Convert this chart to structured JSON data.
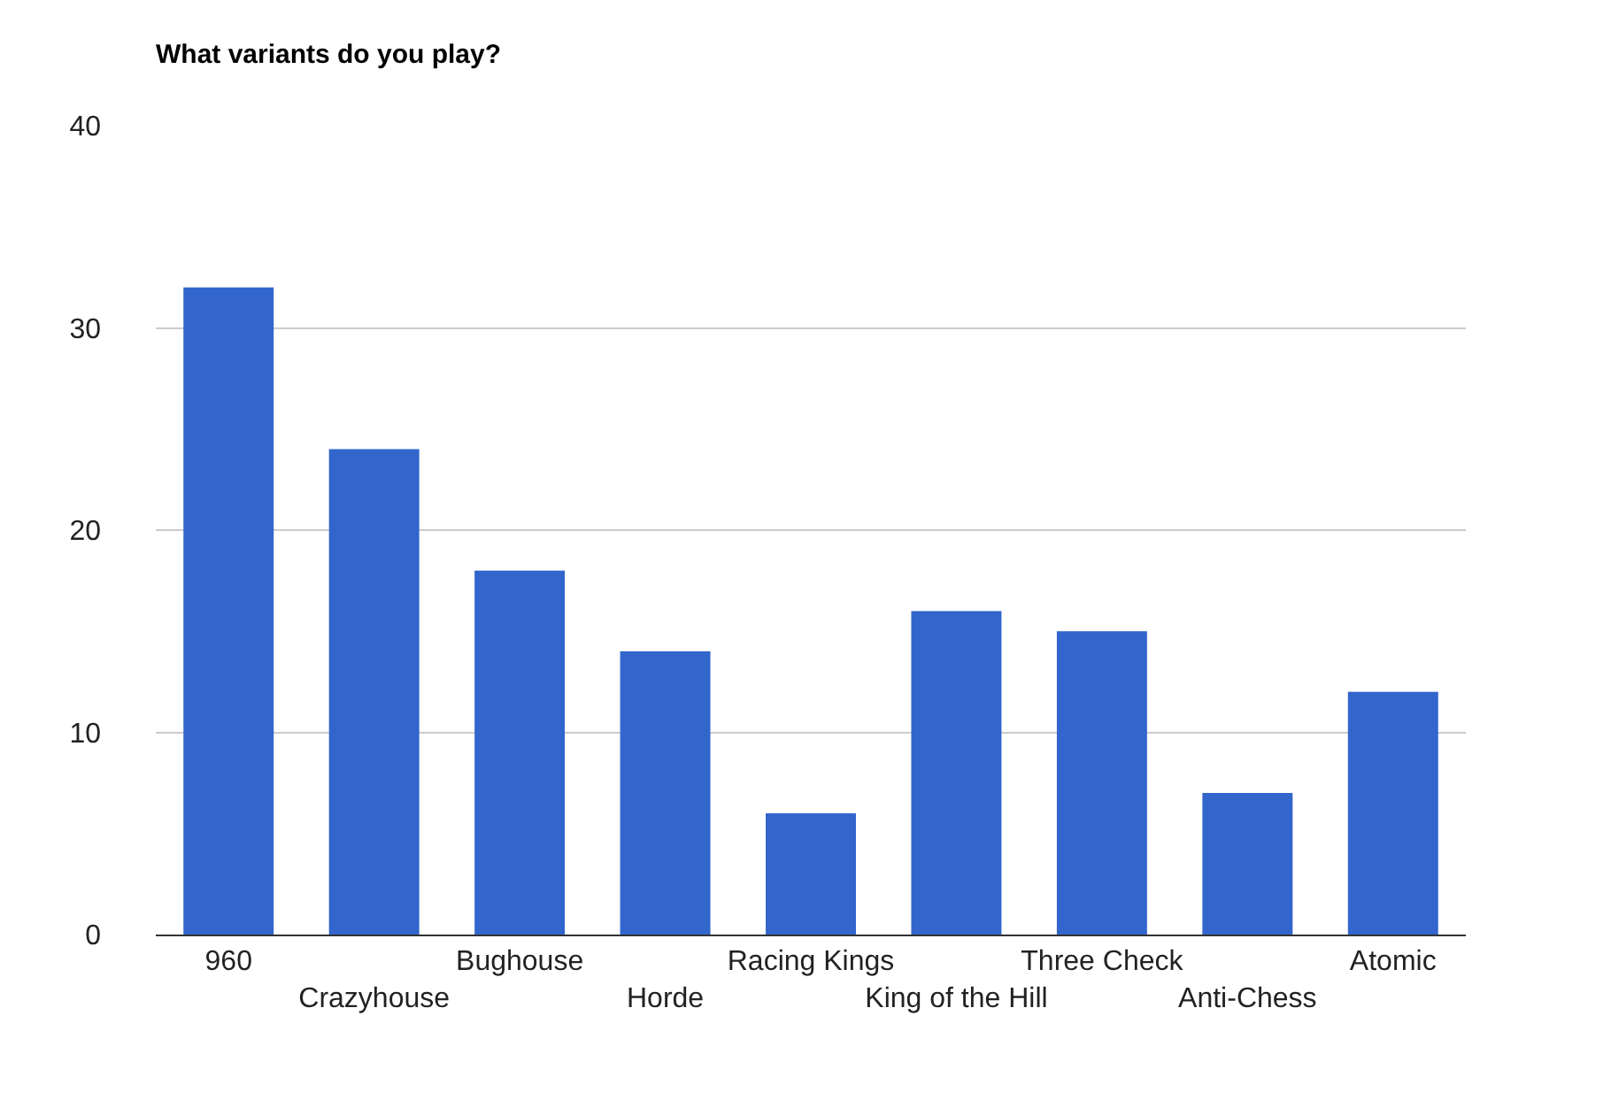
{
  "chart_data": {
    "type": "bar",
    "title": "What variants do you play?",
    "categories": [
      "960",
      "Crazyhouse",
      "Bughouse",
      "Horde",
      "Racing Kings",
      "King of the Hill",
      "Three Check",
      "Anti-Chess",
      "Atomic"
    ],
    "values": [
      32,
      24,
      18,
      14,
      6,
      16,
      15,
      7,
      12
    ],
    "color": "#3366cc",
    "ylim": [
      0,
      40
    ],
    "yticks": [
      0,
      10,
      20,
      30,
      40
    ],
    "grid": "y",
    "legend": false
  }
}
